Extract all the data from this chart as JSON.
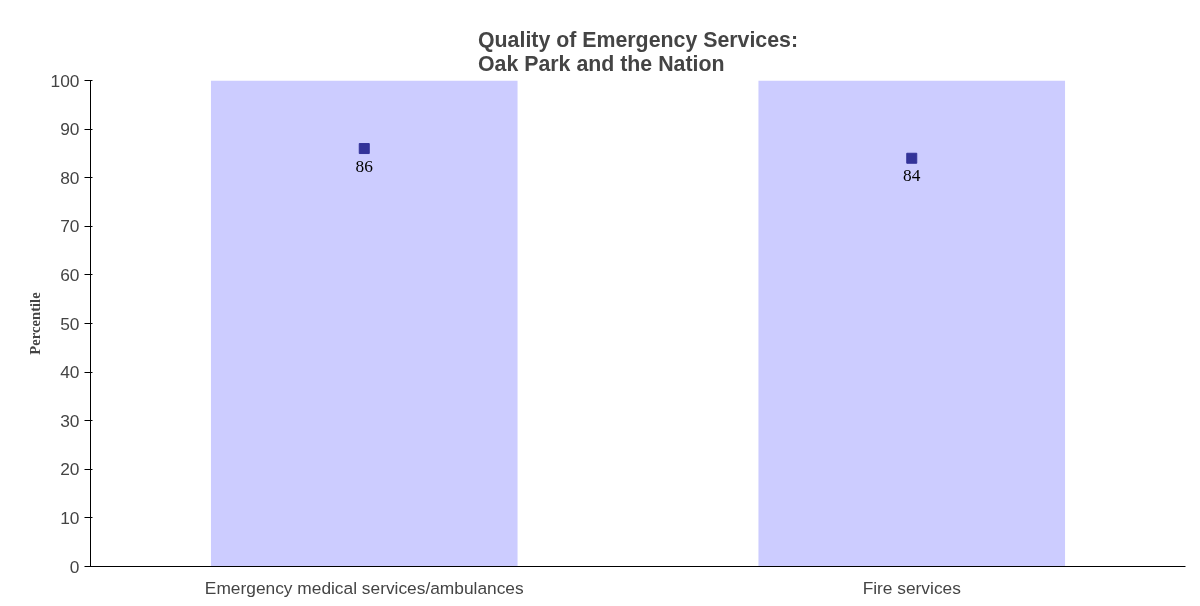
{
  "chart_data": {
    "type": "bar",
    "title": "Quality of Emergency Services:\nOak Park and the Nation",
    "ylabel": "Percentile",
    "categories": [
      "Emergency medical services/ambulances",
      "Fire services"
    ],
    "series": [
      {
        "color": "#ccccff",
        "values": [
          100,
          100
        ]
      },
      {
        "type": "scatter",
        "marker": "square",
        "color": "#333399",
        "values": [
          86,
          84
        ],
        "value_labels": [
          "86",
          "84"
        ]
      }
    ],
    "ylim": [
      0,
      100
    ],
    "yticks": [
      0,
      10,
      20,
      30,
      40,
      50,
      60,
      70,
      80,
      90,
      100
    ],
    "grid": false
  }
}
